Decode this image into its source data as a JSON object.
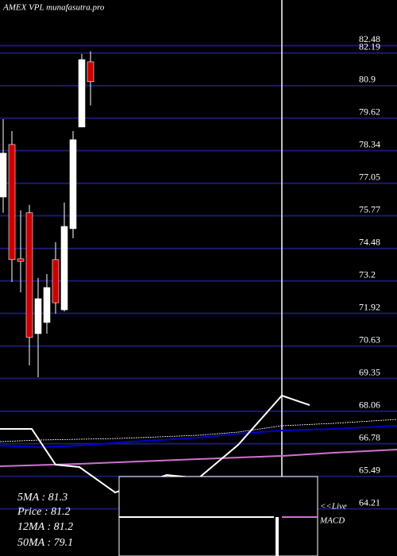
{
  "chart_data": {
    "type": "candlestick",
    "title": "AMEX VPL munafasutra.pro",
    "open": [
      76.51,
      78.58,
      74.07,
      75.89,
      71.12,
      71.56,
      74.04,
      72.06,
      75.26,
      79.27,
      81.84
    ],
    "high": [
      79.58,
      79.11,
      75.98,
      76.2,
      73.32,
      73.47,
      74.73,
      76.29,
      79.11,
      82.15,
      82.25
    ],
    "low": [
      75.89,
      73.16,
      72.75,
      69.87,
      69.4,
      71.12,
      71.91,
      72.0,
      74.88,
      79.27,
      80.12
    ],
    "close": [
      78.24,
      74.04,
      73.97,
      70.97,
      72.5,
      72.94,
      72.34,
      75.35,
      78.77,
      81.93,
      81.06
    ],
    "up_color": "#ffffff",
    "down_color": "#cc0000",
    "ylim": [
      62.35,
      84.28
    ],
    "yticks": [
      82.48,
      82.19,
      80.9,
      79.62,
      78.34,
      77.05,
      75.77,
      74.48,
      73.2,
      71.92,
      70.63,
      69.35,
      68.06,
      66.78,
      65.49,
      64.21
    ],
    "grid": true,
    "grid_color": "#1a1a6e",
    "legend": [
      "5MA : 81.3",
      "Price : 81.2",
      "12MA : 81.2",
      "50MA : 79.1"
    ],
    "macd_label": [
      "<<Live",
      "MACD"
    ]
  }
}
